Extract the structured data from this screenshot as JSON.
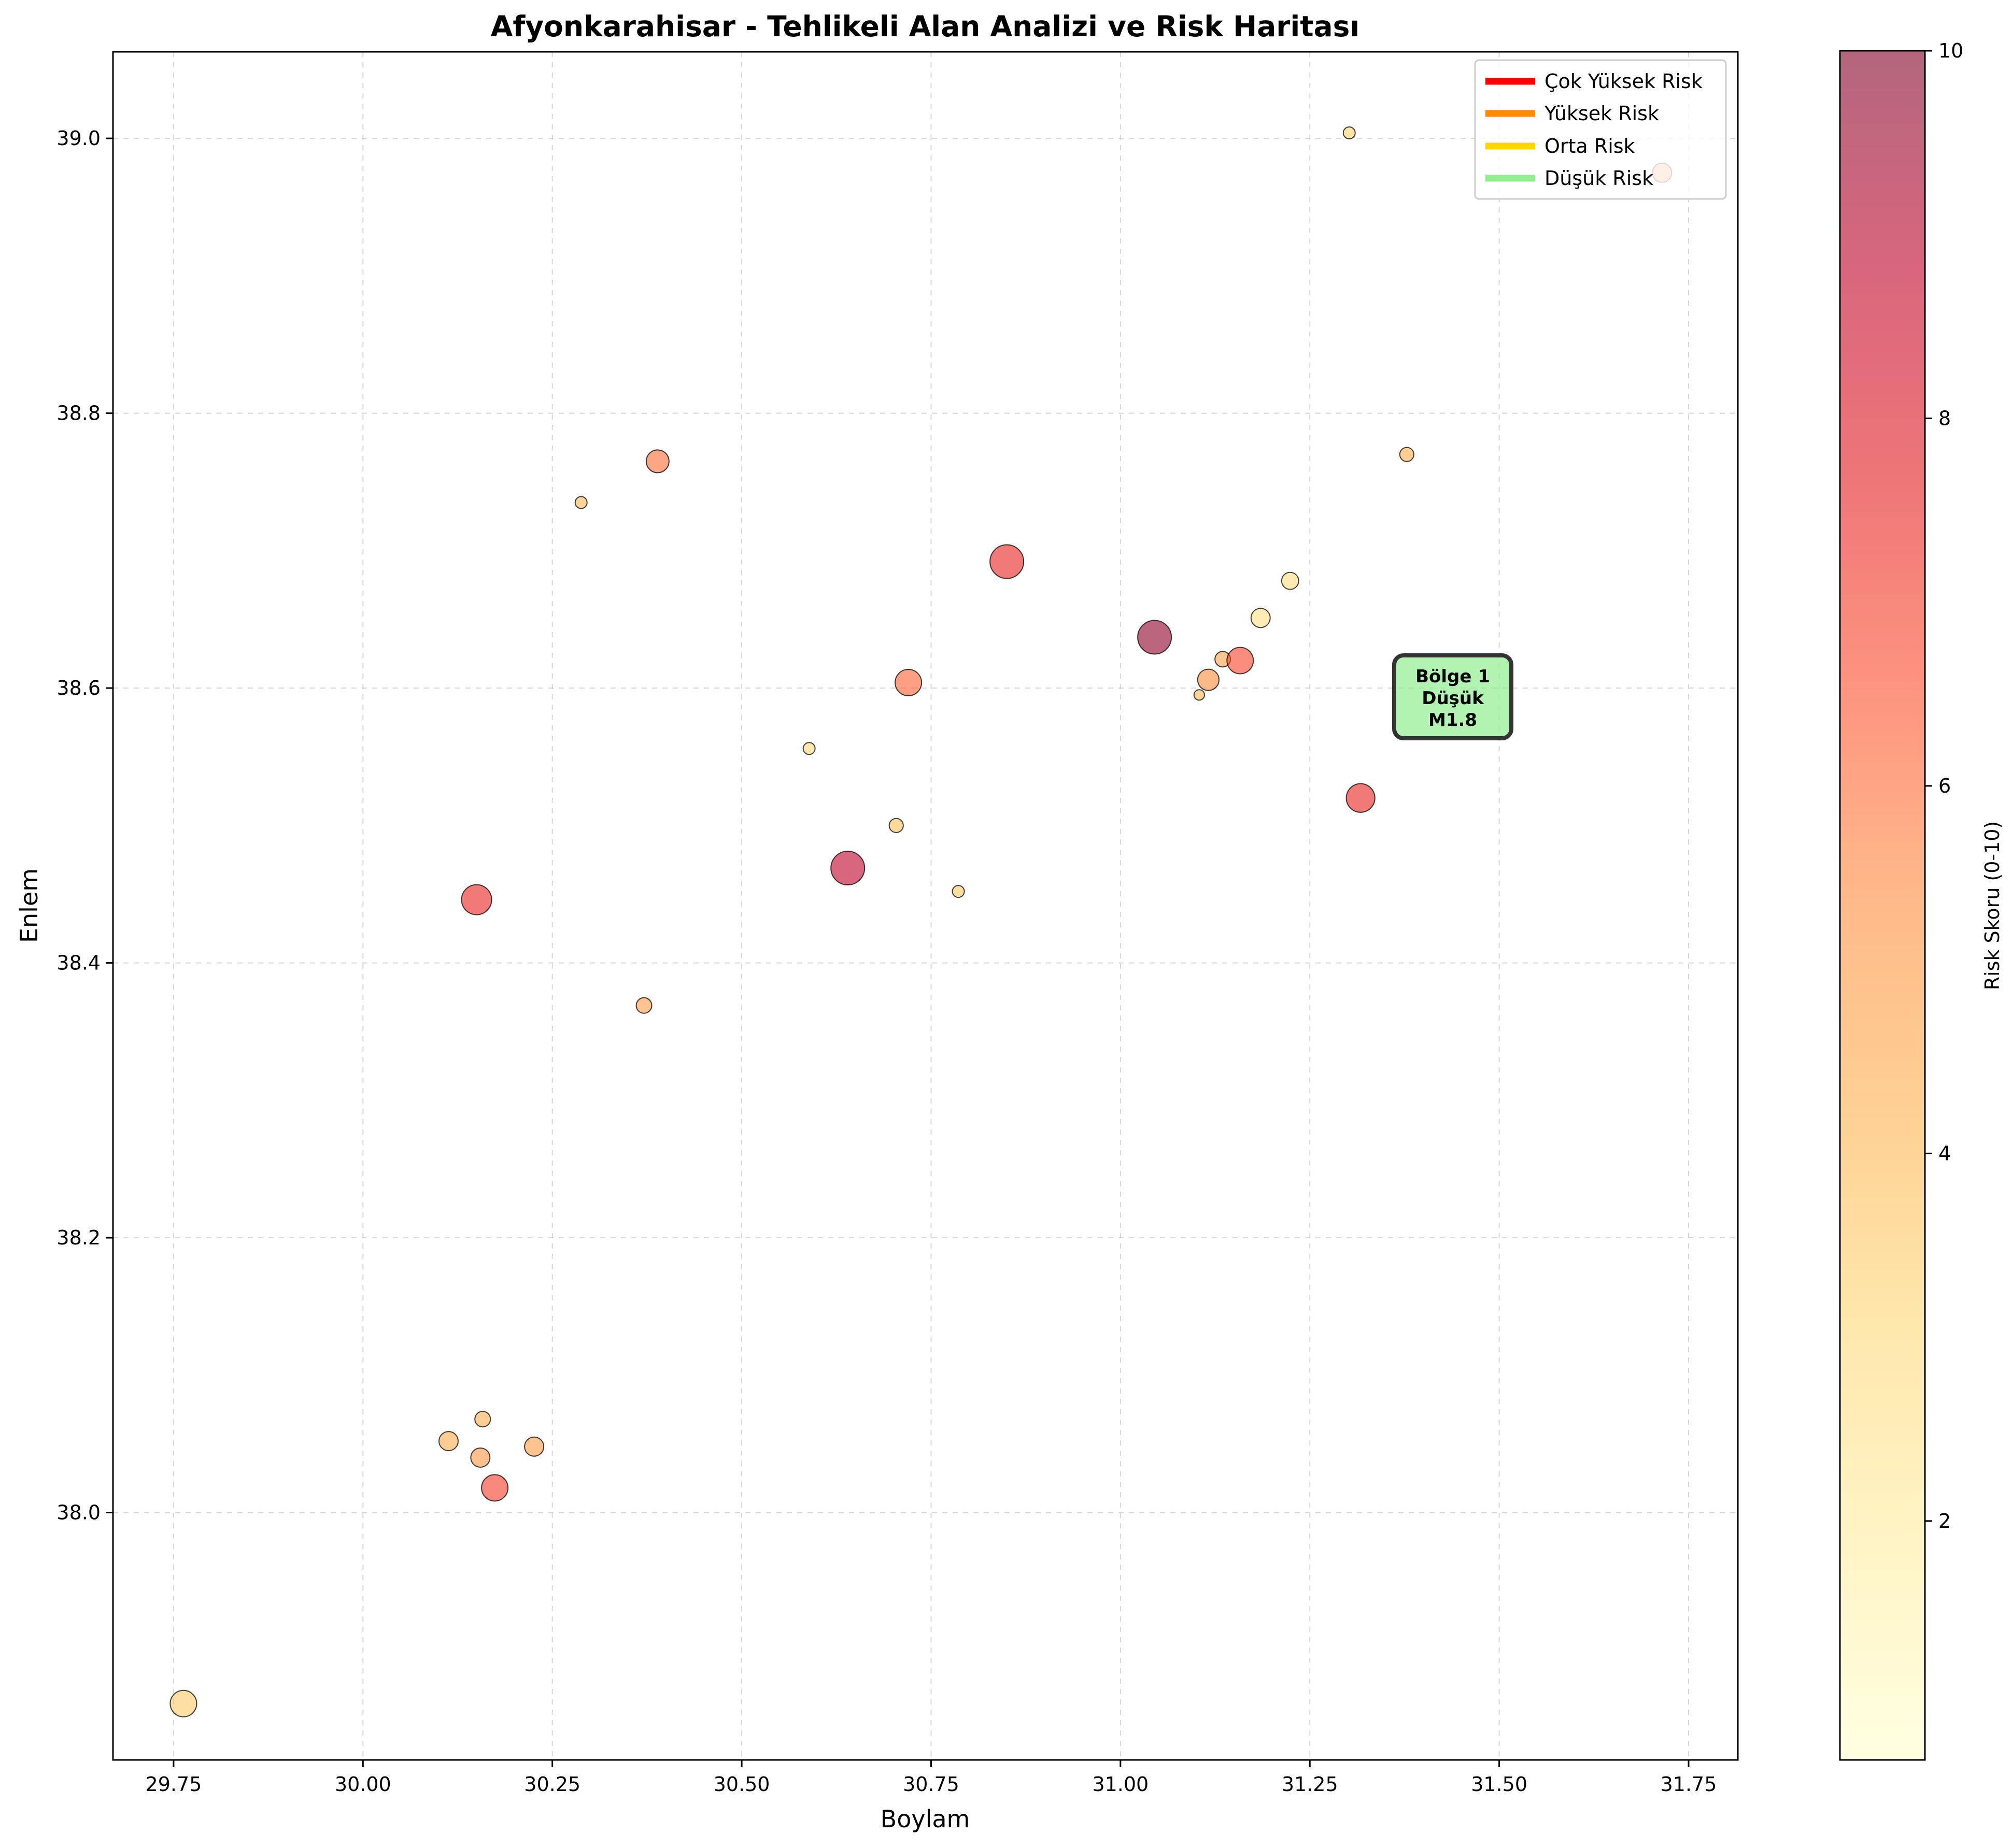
{
  "chart_data": {
    "type": "scatter",
    "title": "Afyonkarahisar - Tehlikeli Alan Analizi ve Risk Haritası",
    "xlabel": "Boylam",
    "ylabel": "Enlem",
    "xlim": [
      29.67,
      31.815
    ],
    "ylim": [
      37.82,
      39.063
    ],
    "x_ticks": [
      29.75,
      30.0,
      30.25,
      30.5,
      30.75,
      31.0,
      31.25,
      31.5,
      31.75
    ],
    "x_tick_labels": [
      "29.75",
      "30.00",
      "30.25",
      "30.50",
      "30.75",
      "31.00",
      "31.25",
      "31.50",
      "31.75"
    ],
    "y_ticks": [
      38.0,
      38.2,
      38.4,
      38.6,
      38.8,
      39.0
    ],
    "y_tick_labels": [
      "38.0",
      "38.2",
      "38.4",
      "38.6",
      "38.8",
      "39.0"
    ],
    "grid": true,
    "colorbar": {
      "label": "Risk Skoru (0-10)",
      "min": 0.7,
      "max": 10,
      "ticks": [
        2,
        4,
        6,
        8,
        10
      ],
      "tick_labels": [
        "2",
        "4",
        "6",
        "8",
        "10"
      ],
      "colormap": [
        "#ffffcc",
        "#ffeda0",
        "#fed976",
        "#feb24c",
        "#fd8d3c",
        "#fc4e2a",
        "#e31a1c",
        "#bd0026",
        "#800026"
      ]
    },
    "legend": {
      "placement": "top-right",
      "entries": [
        {
          "label": "Çok Yüksek Risk",
          "color": "#ff0000"
        },
        {
          "label": "Yüksek Risk",
          "color": "#ff8c00"
        },
        {
          "label": "Orta Risk",
          "color": "#ffd700"
        },
        {
          "label": "Düşük Risk",
          "color": "#90ee90"
        }
      ]
    },
    "annotation": {
      "lines": [
        "Bölge 1",
        "Düşük",
        "M1.8"
      ],
      "x": 31.46,
      "y": 38.584,
      "facecolor": "#90ee90",
      "edgecolor": "#333333"
    },
    "points": [
      {
        "x": 29.763,
        "y": 37.861,
        "risk": 3.5,
        "magnitude": 4.5
      },
      {
        "x": 30.113,
        "y": 38.052,
        "risk": 4.4,
        "magnitude": 3.5
      },
      {
        "x": 30.158,
        "y": 38.068,
        "risk": 4.4,
        "magnitude": 3.0
      },
      {
        "x": 30.155,
        "y": 38.04,
        "risk": 5.0,
        "magnitude": 3.5
      },
      {
        "x": 30.226,
        "y": 38.048,
        "risk": 4.9,
        "magnitude": 3.5
      },
      {
        "x": 30.174,
        "y": 38.018,
        "risk": 7.0,
        "magnitude": 4.5
      },
      {
        "x": 30.15,
        "y": 38.446,
        "risk": 7.5,
        "magnitude": 5.0
      },
      {
        "x": 30.371,
        "y": 38.369,
        "risk": 4.9,
        "magnitude": 3.0
      },
      {
        "x": 30.288,
        "y": 38.735,
        "risk": 4.0,
        "magnitude": 2.5
      },
      {
        "x": 30.389,
        "y": 38.765,
        "risk": 6.0,
        "magnitude": 4.0
      },
      {
        "x": 30.589,
        "y": 38.556,
        "risk": 3.0,
        "magnitude": 2.5
      },
      {
        "x": 30.64,
        "y": 38.469,
        "risk": 8.8,
        "magnitude": 5.5
      },
      {
        "x": 30.704,
        "y": 38.5,
        "risk": 3.8,
        "magnitude": 2.8
      },
      {
        "x": 30.72,
        "y": 38.604,
        "risk": 6.2,
        "magnitude": 4.5
      },
      {
        "x": 30.786,
        "y": 38.452,
        "risk": 3.5,
        "magnitude": 2.5
      },
      {
        "x": 30.85,
        "y": 38.692,
        "risk": 7.5,
        "magnitude": 5.5
      },
      {
        "x": 31.045,
        "y": 38.637,
        "risk": 9.7,
        "magnitude": 5.5
      },
      {
        "x": 31.104,
        "y": 38.595,
        "risk": 4.0,
        "magnitude": 2.3
      },
      {
        "x": 31.116,
        "y": 38.606,
        "risk": 5.4,
        "magnitude": 3.8
      },
      {
        "x": 31.135,
        "y": 38.621,
        "risk": 4.7,
        "magnitude": 3.0
      },
      {
        "x": 31.158,
        "y": 38.62,
        "risk": 6.8,
        "magnitude": 4.5
      },
      {
        "x": 31.185,
        "y": 38.651,
        "risk": 2.6,
        "magnitude": 3.5
      },
      {
        "x": 31.224,
        "y": 38.678,
        "risk": 2.8,
        "magnitude": 3.2
      },
      {
        "x": 31.302,
        "y": 39.004,
        "risk": 3.2,
        "magnitude": 2.5
      },
      {
        "x": 31.317,
        "y": 38.52,
        "risk": 7.5,
        "magnitude": 4.8
      },
      {
        "x": 31.378,
        "y": 38.77,
        "risk": 4.3,
        "magnitude": 2.8
      },
      {
        "x": 31.715,
        "y": 38.975,
        "risk": 5.5,
        "magnitude": 3.5
      }
    ]
  }
}
